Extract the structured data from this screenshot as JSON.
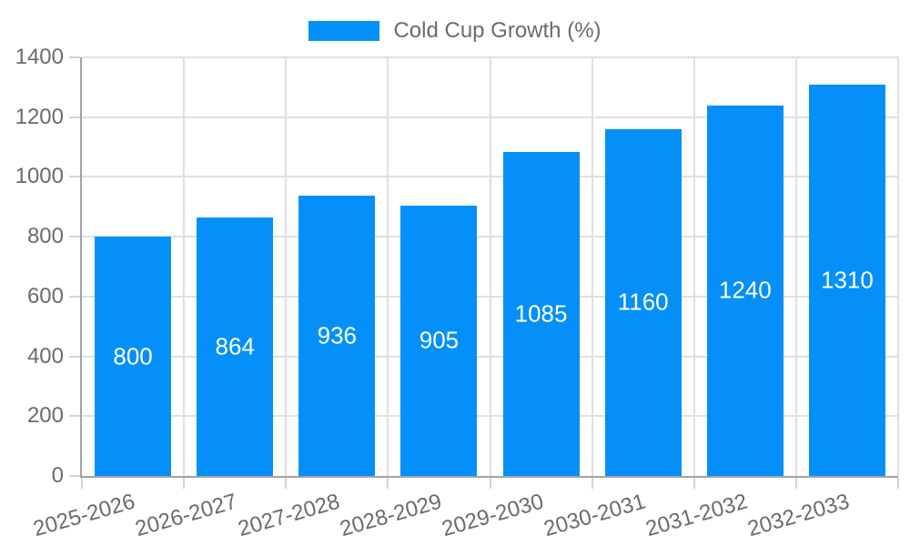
{
  "chart_data": {
    "type": "bar",
    "title": "",
    "categories": [
      "2025-2026",
      "2026-2027",
      "2027-2028",
      "2028-2029",
      "2029-2030",
      "2030-2031",
      "2031-2032",
      "2032-2033"
    ],
    "series": [
      {
        "name": "Cold Cup Growth (%)",
        "values": [
          800,
          864,
          936,
          905,
          1085,
          1160,
          1240,
          1310
        ]
      }
    ],
    "xlabel": "",
    "ylabel": "",
    "ylim": [
      0,
      1400
    ],
    "yticks": [
      0,
      200,
      400,
      600,
      800,
      1000,
      1200,
      1400
    ],
    "grid": true,
    "legend_position": "top-center",
    "bar_value_labels_shown": true,
    "colors": {
      "bar": "#0490f8",
      "bar_label_text": "#ffffff",
      "axis_text": "#6b6b6b",
      "grid_line": "#e0e0e0",
      "axis_line": "#a3a3a3",
      "tick_mark": "#d4d4d4",
      "background": "#ffffff"
    }
  }
}
